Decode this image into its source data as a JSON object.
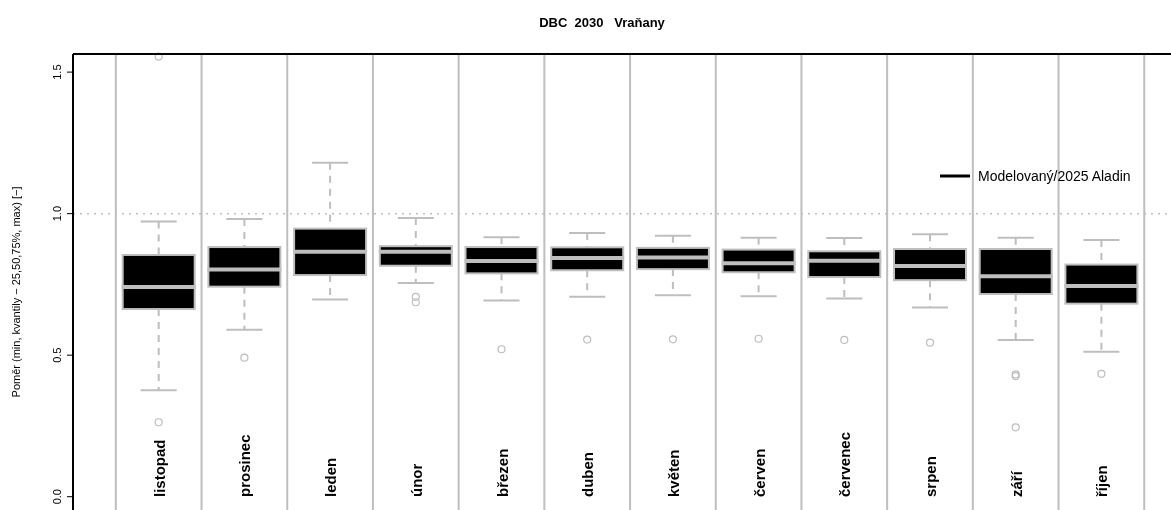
{
  "chart_data": {
    "type": "box",
    "title": "DBC  2030   Vraňany",
    "ylabel": "Poměr (min, kvantily − 25,50,75%, max) [−]",
    "categories": [
      "listopad",
      "prosinec",
      "leden",
      "únor",
      "březen",
      "duben",
      "květen",
      "červen",
      "červenec",
      "srpen",
      "září",
      "říjen"
    ],
    "ylim": [
      -0.047,
      1.564
    ],
    "yticks": [
      {
        "value": 0,
        "label": "0.0"
      },
      {
        "value": 0.5,
        "label": "0.5"
      },
      {
        "value": 1,
        "label": "1.0"
      },
      {
        "value": 1.5,
        "label": "1.5"
      }
    ],
    "grid": "x",
    "legend": "top right",
    "ref_lines": [
      {
        "axis": "y",
        "value": 1,
        "color": "#bebebe",
        "line_style": "dotted"
      }
    ],
    "series": [
      {
        "name": "Modelovaný/2025 Aladin",
        "color": "#000000",
        "boxes": [
          {
            "low": 0.376,
            "q1": 0.663,
            "median": 0.741,
            "q3": 0.854,
            "high": 0.972,
            "outliers": [
              0.263,
              1.555
            ]
          },
          {
            "low": 0.59,
            "q1": 0.742,
            "median": 0.803,
            "q3": 0.882,
            "high": 0.981,
            "outliers": [
              0.491
            ]
          },
          {
            "low": 0.697,
            "q1": 0.783,
            "median": 0.865,
            "q3": 0.947,
            "high": 1.18
          },
          {
            "low": 0.755,
            "q1": 0.816,
            "median": 0.865,
            "q3": 0.885,
            "high": 0.985,
            "outliers": [
              0.706,
              0.687
            ]
          },
          {
            "low": 0.693,
            "q1": 0.789,
            "median": 0.833,
            "q3": 0.882,
            "high": 0.917,
            "outliers": [
              0.521
            ]
          },
          {
            "low": 0.706,
            "q1": 0.8,
            "median": 0.843,
            "q3": 0.881,
            "high": 0.932,
            "outliers": [
              0.555
            ]
          },
          {
            "low": 0.712,
            "q1": 0.804,
            "median": 0.845,
            "q3": 0.879,
            "high": 0.922,
            "outliers": [
              0.556
            ]
          },
          {
            "low": 0.708,
            "q1": 0.793,
            "median": 0.825,
            "q3": 0.873,
            "high": 0.915,
            "outliers": [
              0.558
            ]
          },
          {
            "low": 0.7,
            "q1": 0.776,
            "median": 0.834,
            "q3": 0.867,
            "high": 0.914,
            "outliers": [
              0.554
            ]
          },
          {
            "low": 0.668,
            "q1": 0.765,
            "median": 0.815,
            "q3": 0.875,
            "high": 0.927,
            "outliers": [
              0.544
            ]
          },
          {
            "low": 0.554,
            "q1": 0.716,
            "median": 0.779,
            "q3": 0.875,
            "high": 0.915,
            "outliers": [
              0.432,
              0.426,
              0.245
            ]
          },
          {
            "low": 0.512,
            "q1": 0.682,
            "median": 0.744,
            "q3": 0.82,
            "high": 0.907,
            "outliers": [
              0.434
            ]
          }
        ]
      }
    ]
  }
}
